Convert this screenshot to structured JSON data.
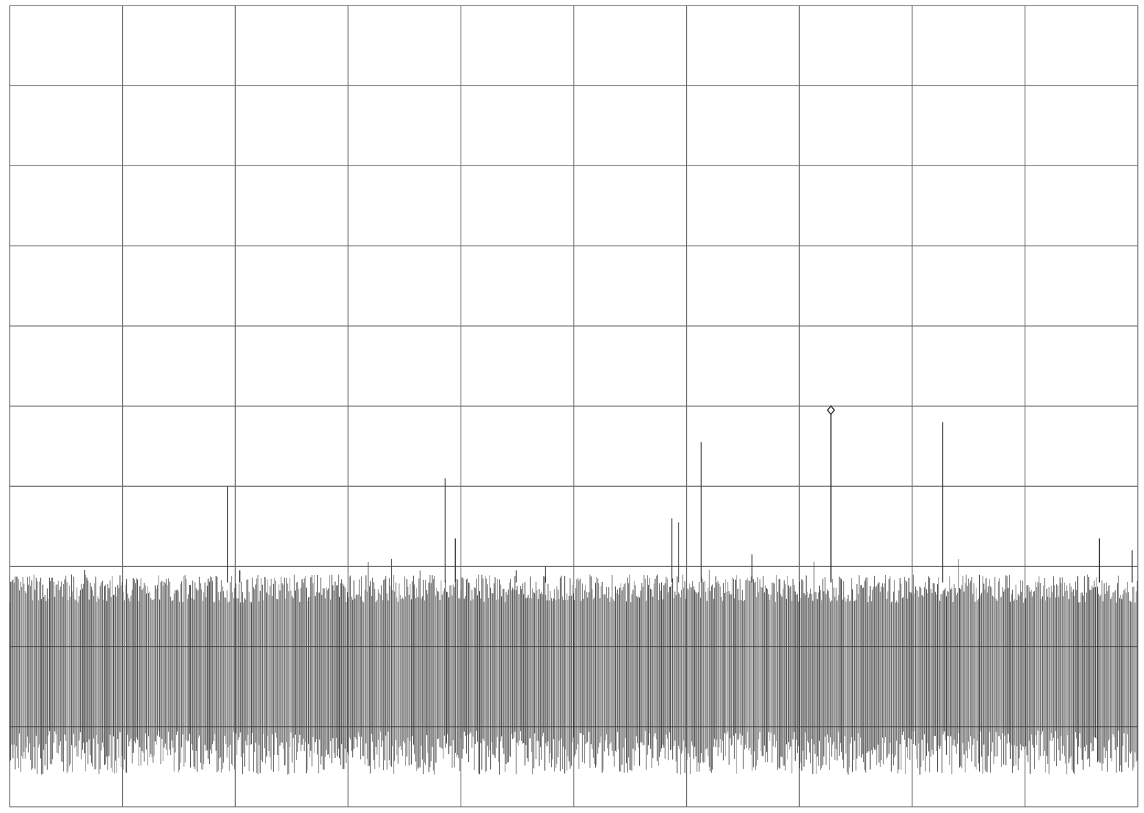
{
  "chart_data": {
    "type": "line",
    "title": "",
    "xlabel": "",
    "ylabel": "",
    "grid": true,
    "x_divisions": 10,
    "y_divisions": 10,
    "xlim": [
      0,
      10
    ],
    "ylim": [
      0,
      10
    ],
    "noise_floor_band": [
      0.4,
      2.9
    ],
    "series": [
      {
        "values": [
          {
            "x": 1.93,
            "y": 4.0
          },
          {
            "x": 2.04,
            "y": 2.95
          },
          {
            "x": 3.86,
            "y": 4.1
          },
          {
            "x": 3.95,
            "y": 3.35
          },
          {
            "x": 4.49,
            "y": 2.95
          },
          {
            "x": 4.75,
            "y": 3.0
          },
          {
            "x": 5.87,
            "y": 3.6
          },
          {
            "x": 5.93,
            "y": 3.55
          },
          {
            "x": 6.13,
            "y": 4.55
          },
          {
            "x": 6.58,
            "y": 3.15
          },
          {
            "x": 7.28,
            "y": 4.95
          },
          {
            "x": 8.27,
            "y": 4.8
          },
          {
            "x": 9.66,
            "y": 3.35
          },
          {
            "x": 9.95,
            "y": 3.2
          }
        ]
      }
    ]
  }
}
